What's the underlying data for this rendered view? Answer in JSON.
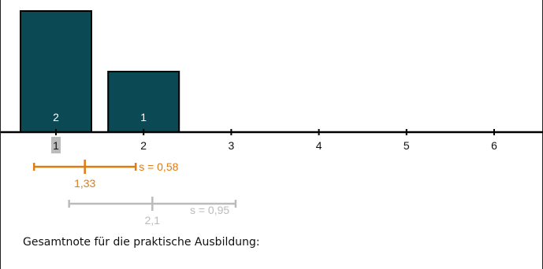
{
  "chart_data": {
    "type": "bar",
    "categories": [
      "1",
      "2",
      "3",
      "4",
      "5",
      "6"
    ],
    "values": [
      2,
      1,
      0,
      0,
      0,
      0
    ],
    "highlighted_category": "1",
    "bar_labels": [
      "2",
      "1",
      "",
      "",
      "",
      ""
    ],
    "xlim": [
      1,
      6
    ],
    "ylim": [
      0,
      2
    ],
    "grid": false,
    "stats": [
      {
        "mean": 1.33,
        "sd": 0.58,
        "mean_label": "1,33",
        "sd_label": "s = 0,58",
        "color": "#e07b12"
      },
      {
        "mean": 2.1,
        "sd": 0.95,
        "mean_label": "2,1",
        "sd_label": "s = 0,95",
        "color": "#bbbbbb"
      }
    ]
  },
  "colors": {
    "bar": "#0b4a55",
    "bar_outline": "#000000",
    "highlight_box": "#bbbbbb",
    "axis": "#000000"
  },
  "caption": "Gesamtnote für die praktische Ausbildung:"
}
